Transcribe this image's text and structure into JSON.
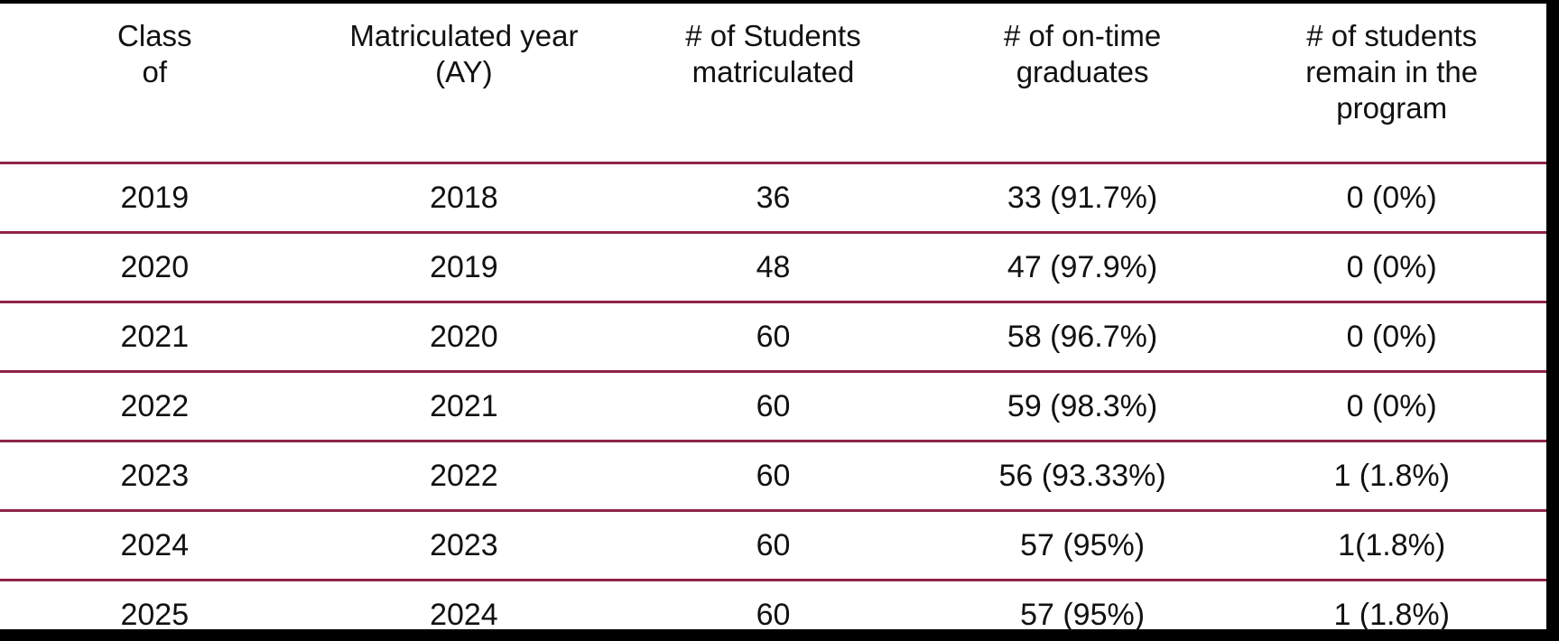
{
  "table": {
    "title": "graduation-outcomes-table",
    "headers": [
      "Class\nof",
      "Matriculated year\n(AY)",
      "# of Students\nmatriculated",
      "# of on-time\ngraduates",
      "# of students\nremain in the\nprogram"
    ],
    "rows": [
      [
        "2019",
        "2018",
        "36",
        "33 (91.7%)",
        "0 (0%)"
      ],
      [
        "2020",
        "2019",
        "48",
        "47 (97.9%)",
        "0 (0%)"
      ],
      [
        "2021",
        "2020",
        "60",
        "58 (96.7%)",
        "0 (0%)"
      ],
      [
        "2022",
        "2021",
        "60",
        "59 (98.3%)",
        "0 (0%)"
      ],
      [
        "2023",
        "2022",
        "60",
        "56 (93.33%)",
        "1 (1.8%)"
      ],
      [
        "2024",
        "2023",
        "60",
        "57 (95%)",
        "1(1.8%)"
      ],
      [
        "2025",
        "2024",
        "60",
        "57 (95%)",
        "1 (1.8%)"
      ]
    ],
    "colors": {
      "row_separator": "#8E2449",
      "frame": "#000000",
      "text": "#111111",
      "background": "#FFFFFF"
    }
  }
}
